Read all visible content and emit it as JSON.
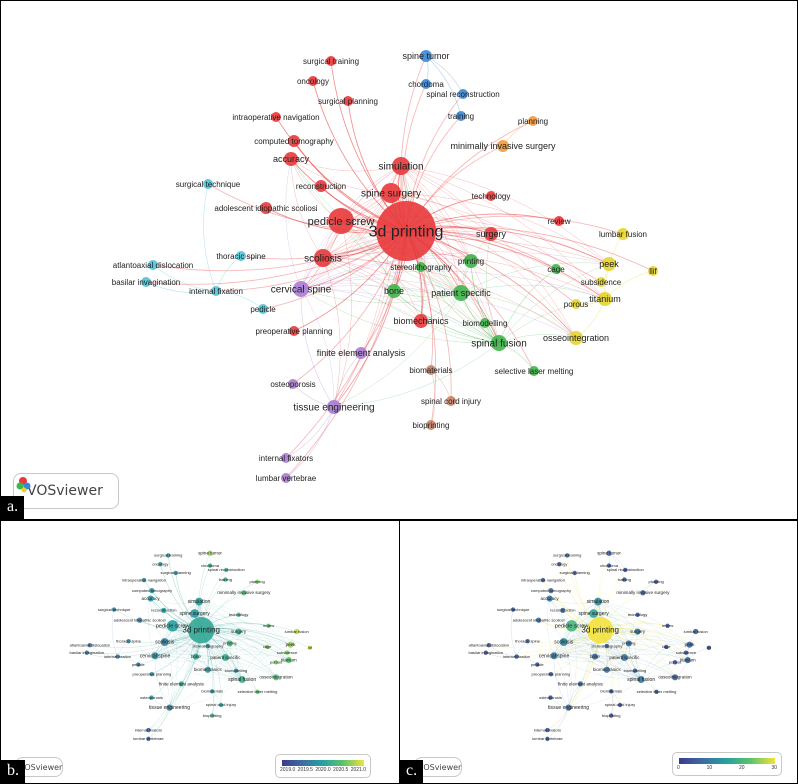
{
  "panels": {
    "a": {
      "letter": "a.",
      "logo": "VOSviewer"
    },
    "b": {
      "letter": "b.",
      "logo": "VOSviewer",
      "legend_ticks": [
        "2019.0",
        "2019.5",
        "2020.0",
        "2020.5",
        "2021.0"
      ]
    },
    "c": {
      "letter": "c.",
      "logo": "VOSviewer",
      "legend_ticks": [
        "0",
        "10",
        "20",
        "30"
      ]
    }
  },
  "colors": {
    "red": "#e8393b",
    "green": "#3fb54a",
    "blue": "#3a87d6",
    "yellow": "#e6d42c",
    "purple": "#a97cd1",
    "cyan": "#4fc3d9",
    "orange": "#f29a3b",
    "brown": "#c98266"
  },
  "icons": [
    "vosviewer-logo-icon"
  ],
  "nodes": [
    {
      "label": "3d printing",
      "cluster": "red",
      "size": 30,
      "fs": 16,
      "ov": 0.55,
      "cv": 34
    },
    {
      "label": "pedicle screw",
      "cluster": "red",
      "size": 13,
      "fs": 11,
      "ov": 0.5,
      "cv": 22
    },
    {
      "label": "spine surgery",
      "cluster": "red",
      "size": 10,
      "fs": 10,
      "ov": 0.45,
      "cv": 18
    },
    {
      "label": "simulation",
      "cluster": "red",
      "size": 9,
      "fs": 10,
      "ov": 0.5,
      "cv": 14
    },
    {
      "label": "scoliosis",
      "cluster": "red",
      "size": 9,
      "fs": 10,
      "ov": 0.35,
      "cv": 13
    },
    {
      "label": "accuracy",
      "cluster": "red",
      "size": 7,
      "fs": 9,
      "ov": 0.45,
      "cv": 10
    },
    {
      "label": "surgery",
      "cluster": "red",
      "size": 7,
      "fs": 9,
      "ov": 0.6,
      "cv": 9
    },
    {
      "label": "computed tomography",
      "cluster": "red",
      "size": 6,
      "fs": 8,
      "ov": 0.4,
      "cv": 8
    },
    {
      "label": "reconstruction",
      "cluster": "red",
      "size": 6,
      "fs": 8,
      "ov": 0.5,
      "cv": 7
    },
    {
      "label": "adolescent idiopathic scoliosi",
      "cluster": "red",
      "size": 6,
      "fs": 8,
      "ov": 0.3,
      "cv": 7
    },
    {
      "label": "surgical training",
      "cluster": "red",
      "size": 5,
      "fs": 8,
      "ov": 0.4,
      "cv": 5
    },
    {
      "label": "oncology",
      "cluster": "red",
      "size": 5,
      "fs": 8,
      "ov": 0.45,
      "cv": 5
    },
    {
      "label": "surgical planning",
      "cluster": "red",
      "size": 5,
      "fs": 8,
      "ov": 0.4,
      "cv": 5
    },
    {
      "label": "intraoperative navigation",
      "cluster": "red",
      "size": 5,
      "fs": 8,
      "ov": 0.35,
      "cv": 5
    },
    {
      "label": "technology",
      "cluster": "red",
      "size": 5,
      "fs": 8,
      "ov": 0.65,
      "cv": 4
    },
    {
      "label": "preoperative planning",
      "cluster": "red",
      "size": 5,
      "fs": 8,
      "ov": 0.4,
      "cv": 5
    },
    {
      "label": "review",
      "cluster": "red",
      "size": 5,
      "fs": 8,
      "ov": 0.75,
      "cv": 4
    },
    {
      "label": "biomechanics",
      "cluster": "red",
      "size": 7,
      "fs": 9,
      "ov": 0.45,
      "cv": 9
    },
    {
      "label": "spine tumor",
      "cluster": "blue",
      "size": 6,
      "fs": 9,
      "ov": 0.85,
      "cv": 6
    },
    {
      "label": "chordoma",
      "cluster": "blue",
      "size": 5,
      "fs": 8,
      "ov": 0.6,
      "cv": 5
    },
    {
      "label": "spinal reconstruction",
      "cluster": "blue",
      "size": 5,
      "fs": 8,
      "ov": 0.65,
      "cv": 4
    },
    {
      "label": "training",
      "cluster": "blue",
      "size": 5,
      "fs": 8,
      "ov": 0.6,
      "cv": 4
    },
    {
      "label": "minimally invasive surgery",
      "cluster": "orange",
      "size": 6,
      "fs": 9,
      "ov": 0.7,
      "cv": 6
    },
    {
      "label": "planning",
      "cluster": "orange",
      "size": 5,
      "fs": 8,
      "ov": 0.8,
      "cv": 4
    },
    {
      "label": "lumbar fusion",
      "cluster": "yellow",
      "size": 6,
      "fs": 8,
      "ov": 0.9,
      "cv": 5
    },
    {
      "label": "peek",
      "cluster": "yellow",
      "size": 7,
      "fs": 9,
      "ov": 0.85,
      "cv": 7
    },
    {
      "label": "titanium",
      "cluster": "yellow",
      "size": 7,
      "fs": 9,
      "ov": 0.75,
      "cv": 7
    },
    {
      "label": "subsidence",
      "cluster": "yellow",
      "size": 5,
      "fs": 8,
      "ov": 0.8,
      "cv": 4
    },
    {
      "label": "porous",
      "cluster": "yellow",
      "size": 5,
      "fs": 8,
      "ov": 0.8,
      "cv": 4
    },
    {
      "label": "osseointegration",
      "cluster": "yellow",
      "size": 7,
      "fs": 9,
      "ov": 0.7,
      "cv": 7
    },
    {
      "label": "llif",
      "cluster": "yellow",
      "size": 5,
      "fs": 8,
      "ov": 0.95,
      "cv": 3
    },
    {
      "label": "cage",
      "cluster": "green",
      "size": 5,
      "fs": 8,
      "ov": 0.8,
      "cv": 5
    },
    {
      "label": "printing",
      "cluster": "green",
      "size": 7,
      "fs": 8,
      "ov": 0.65,
      "cv": 8
    },
    {
      "label": "stereolithography",
      "cluster": "green",
      "size": 5,
      "fs": 8,
      "ov": 0.35,
      "cv": 5
    },
    {
      "label": "bone",
      "cluster": "green",
      "size": 7,
      "fs": 9,
      "ov": 0.55,
      "cv": 8
    },
    {
      "label": "patient specific",
      "cluster": "green",
      "size": 8,
      "fs": 9,
      "ov": 0.6,
      "cv": 10
    },
    {
      "label": "biomodelling",
      "cluster": "green",
      "size": 5,
      "fs": 8,
      "ov": 0.35,
      "cv": 5
    },
    {
      "label": "spinal fusion",
      "cluster": "green",
      "size": 8,
      "fs": 10,
      "ov": 0.6,
      "cv": 10
    },
    {
      "label": "selective laser melting",
      "cluster": "green",
      "size": 5,
      "fs": 8,
      "ov": 0.75,
      "cv": 4
    },
    {
      "label": "biomaterials",
      "cluster": "brown",
      "size": 5,
      "fs": 8,
      "ov": 0.5,
      "cv": 4
    },
    {
      "label": "spinal cord injury",
      "cluster": "brown",
      "size": 5,
      "fs": 8,
      "ov": 0.5,
      "cv": 4
    },
    {
      "label": "bioprinting",
      "cluster": "brown",
      "size": 5,
      "fs": 8,
      "ov": 0.65,
      "cv": 3
    },
    {
      "label": "cervical spine",
      "cluster": "purple",
      "size": 8,
      "fs": 10,
      "ov": 0.4,
      "cv": 10
    },
    {
      "label": "finite element analysis",
      "cluster": "purple",
      "size": 6,
      "fs": 9,
      "ov": 0.55,
      "cv": 7
    },
    {
      "label": "tissue engineering",
      "cluster": "purple",
      "size": 7,
      "fs": 10,
      "ov": 0.35,
      "cv": 8
    },
    {
      "label": "osteoporosis",
      "cluster": "purple",
      "size": 5,
      "fs": 8,
      "ov": 0.45,
      "cv": 4
    },
    {
      "label": "internal fixators",
      "cluster": "purple",
      "size": 5,
      "fs": 8,
      "ov": 0.2,
      "cv": 4
    },
    {
      "label": "lumbar vertebrae",
      "cluster": "purple",
      "size": 5,
      "fs": 8,
      "ov": 0.15,
      "cv": 4
    },
    {
      "label": "thoracic spine",
      "cluster": "cyan",
      "size": 5,
      "fs": 8,
      "ov": 0.4,
      "cv": 5
    },
    {
      "label": "atlantoaxial dislocation",
      "cluster": "cyan",
      "size": 5,
      "fs": 8,
      "ov": 0.25,
      "cv": 4
    },
    {
      "label": "basilar invagination",
      "cluster": "cyan",
      "size": 5,
      "fs": 8,
      "ov": 0.25,
      "cv": 4
    },
    {
      "label": "internal fixation",
      "cluster": "cyan",
      "size": 5,
      "fs": 8,
      "ov": 0.3,
      "cv": 4
    },
    {
      "label": "pedicle",
      "cluster": "cyan",
      "size": 5,
      "fs": 8,
      "ov": 0.3,
      "cv": 4
    },
    {
      "label": "surgical technique",
      "cluster": "cyan",
      "size": 5,
      "fs": 8,
      "ov": 0.35,
      "cv": 4
    }
  ]
}
